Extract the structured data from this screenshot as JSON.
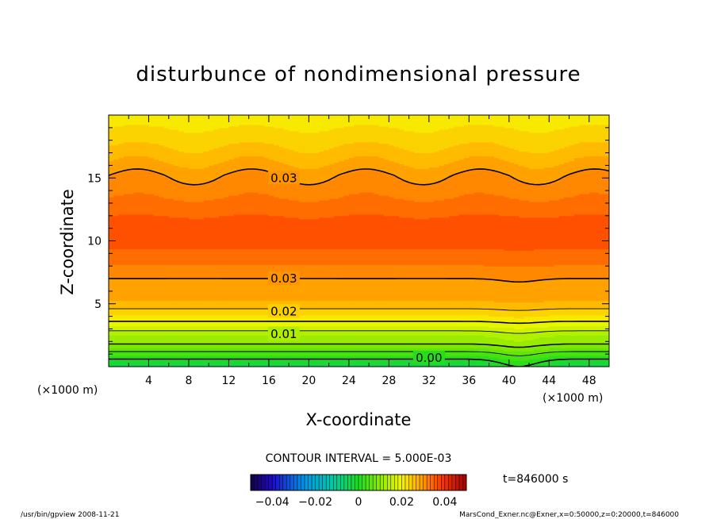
{
  "chart_data": {
    "type": "contour",
    "title": "disturbunce of nondimensional pressure",
    "xlabel": "X-coordinate",
    "ylabel": "Z-coordinate",
    "x_unit": "(×1000 m)",
    "y_unit": "(×1000 m)",
    "xlim": [
      0,
      50
    ],
    "ylim": [
      0,
      20
    ],
    "x_ticks": [
      4,
      8,
      12,
      16,
      20,
      24,
      28,
      32,
      36,
      40,
      44,
      48
    ],
    "y_ticks": [
      5,
      10,
      15
    ],
    "contour_interval_label": "CONTOUR INTERVAL = 5.000E-03",
    "time_label": "t=846000 s",
    "colorbar": {
      "min": -0.05,
      "max": 0.05,
      "ticks": [
        -0.04,
        -0.02,
        0,
        0.02,
        0.04
      ],
      "tick_labels": [
        "−0.04",
        "−0.02",
        "0",
        "0.02",
        "0.04"
      ]
    },
    "contour_labels": [
      {
        "value": "0.03",
        "x": 17.5,
        "z": 15.0
      },
      {
        "value": "0.03",
        "x": 17.5,
        "z": 7.0
      },
      {
        "value": "0.02",
        "x": 17.5,
        "z": 4.4
      },
      {
        "value": "0.01",
        "x": 17.5,
        "z": 2.6
      },
      {
        "value": "0.00",
        "x": 32.0,
        "z": 0.7
      }
    ],
    "profile": {
      "z": [
        0,
        0.6,
        1.2,
        1.8,
        2.4,
        3.0,
        3.6,
        4.2,
        4.8,
        5.4,
        6.0,
        7.0,
        8.5,
        10.2,
        12.0,
        14.0,
        15.2,
        16.5,
        18.0,
        20.0
      ],
      "value": [
        -0.004,
        0.0,
        0.005,
        0.01,
        0.012,
        0.016,
        0.02,
        0.023,
        0.026,
        0.028,
        0.029,
        0.03,
        0.0335,
        0.0365,
        0.035,
        0.0315,
        0.03,
        0.027,
        0.024,
        0.021
      ]
    }
  },
  "footer": {
    "left": "/usr/bin/gpview   2008-11-21",
    "right": "MarsCond_Exner.nc@Exner,x=0:50000,z=0:20000,t=846000"
  }
}
